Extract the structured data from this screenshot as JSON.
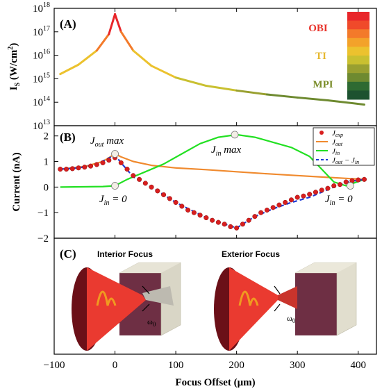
{
  "chart_data": [
    {
      "type": "line",
      "panel_label": "(A)",
      "ylabel": "I_S (W/cm^2)",
      "ylabel_main": "I",
      "ylabel_sub": "S",
      "ylabel_rest": " (W/cm",
      "ylabel_sup": "2",
      "ylabel_end": ")",
      "yscale": "log",
      "ylim_exp": [
        13,
        18
      ],
      "ytick_base": "10",
      "yticks_exp": [
        "13",
        "14",
        "15",
        "16",
        "17",
        "18"
      ],
      "xlim": [
        -100,
        430
      ],
      "regimes": [
        {
          "name": "OBI",
          "color": "#e8322a"
        },
        {
          "name": "TI",
          "color": "#e6b830"
        },
        {
          "name": "MPI",
          "color": "#7b8d2a"
        }
      ],
      "colorbar": [
        "#e8262a",
        "#f04a2a",
        "#f37a2a",
        "#f3a22a",
        "#ecc22e",
        "#c9c030",
        "#99a030",
        "#6e8a30",
        "#2e6a32",
        "#1d5230"
      ],
      "series": [
        {
          "x": [
            -90,
            -60,
            -30,
            -10,
            0,
            10,
            30,
            60,
            100,
            150,
            200,
            250,
            300,
            350,
            410
          ],
          "y_exp": [
            15.2,
            15.6,
            16.2,
            16.9,
            17.75,
            17.0,
            16.2,
            15.55,
            15.05,
            14.7,
            14.5,
            14.33,
            14.2,
            14.08,
            13.9
          ]
        }
      ]
    },
    {
      "type": "line",
      "panel_label": "(B)",
      "ylabel": "Current (nA)",
      "ylim": [
        -2,
        2.4
      ],
      "yticks": [
        -2,
        -1,
        0,
        1,
        2
      ],
      "xlim": [
        -100,
        430
      ],
      "series": [
        {
          "name": "J_exp",
          "legend_main": "J",
          "legend_sub": "exp",
          "marker": "circle",
          "color": "#d81e1e",
          "x": [
            -90,
            -80,
            -70,
            -60,
            -50,
            -40,
            -30,
            -20,
            -10,
            0,
            10,
            20,
            30,
            40,
            50,
            60,
            70,
            80,
            90,
            100,
            110,
            120,
            130,
            140,
            150,
            160,
            170,
            180,
            190,
            200,
            210,
            220,
            230,
            240,
            250,
            260,
            270,
            280,
            290,
            300,
            310,
            320,
            330,
            340,
            350,
            360,
            370,
            380,
            390,
            400,
            410
          ],
          "y": [
            0.7,
            0.7,
            0.72,
            0.75,
            0.78,
            0.82,
            0.88,
            0.95,
            1.05,
            1.15,
            0.95,
            0.7,
            0.45,
            0.3,
            0.15,
            0.0,
            -0.15,
            -0.3,
            -0.45,
            -0.6,
            -0.75,
            -0.9,
            -1.0,
            -1.1,
            -1.2,
            -1.3,
            -1.38,
            -1.45,
            -1.55,
            -1.6,
            -1.45,
            -1.3,
            -1.15,
            -1.0,
            -0.9,
            -0.8,
            -0.7,
            -0.6,
            -0.5,
            -0.4,
            -0.35,
            -0.28,
            -0.2,
            -0.12,
            -0.05,
            0.05,
            0.1,
            0.2,
            0.25,
            0.28,
            0.3
          ]
        },
        {
          "name": "J_out",
          "legend_main": "J",
          "legend_sub": "out",
          "color": "#f08a2e",
          "x": [
            -90,
            -50,
            -20,
            0,
            10,
            30,
            60,
            100,
            150,
            200,
            250,
            300,
            350,
            410
          ],
          "y": [
            0.7,
            0.8,
            1.0,
            1.3,
            1.18,
            1.0,
            0.85,
            0.75,
            0.68,
            0.6,
            0.52,
            0.45,
            0.38,
            0.3
          ]
        },
        {
          "name": "J_in",
          "legend_main": "J",
          "legend_sub": "in",
          "color": "#22e022",
          "x": [
            -90,
            -20,
            0,
            20,
            50,
            80,
            110,
            140,
            170,
            200,
            230,
            260,
            290,
            320,
            340,
            360,
            380,
            410
          ],
          "y": [
            0.0,
            0.02,
            0.05,
            0.3,
            0.6,
            0.9,
            1.3,
            1.7,
            1.95,
            2.05,
            1.95,
            1.75,
            1.55,
            1.2,
            0.7,
            0.2,
            0.05,
            0.3
          ]
        },
        {
          "name": "J_out - J_in",
          "legend_main": "J",
          "legend_sub": "out",
          "legend_mid": " − J",
          "legend_sub2": "in",
          "color": "#1f3bd6",
          "dash": true,
          "x": [
            -90,
            -60,
            -30,
            0,
            10,
            30,
            60,
            100,
            150,
            200,
            230,
            260,
            290,
            320,
            350,
            380,
            410
          ],
          "y": [
            0.7,
            0.75,
            0.9,
            1.25,
            0.95,
            0.4,
            0.0,
            -0.6,
            -1.2,
            -1.6,
            -1.15,
            -0.85,
            -0.6,
            -0.4,
            -0.1,
            0.2,
            0.3
          ]
        }
      ],
      "annotations": [
        {
          "main": "J",
          "sub": "out",
          "rest": " max",
          "color": "#f3a063"
        },
        {
          "main": "J",
          "sub": "in",
          "rest": " max",
          "color": "#8fd66a"
        },
        {
          "main": "J",
          "sub": "in",
          "rest": " = 0",
          "color": "#f3a063"
        },
        {
          "main": "J",
          "sub": "in",
          "rest": " = 0",
          "color": "#5ed6d6"
        }
      ],
      "highlight_points": [
        {
          "x": 0,
          "y": 1.3
        },
        {
          "x": 197,
          "y": 2.05
        },
        {
          "x": 0,
          "y": 0.05
        },
        {
          "x": 387,
          "y": 0.05
        }
      ]
    },
    {
      "type": "diagram",
      "panel_label": "(C)",
      "labels": [
        "Interior Focus",
        "Exterior Focus"
      ],
      "waist_main": "ω",
      "waist_sub": "0"
    }
  ],
  "x_axis": {
    "xlabel": "Focus Offset (μm)",
    "ticks": [
      -100,
      0,
      100,
      200,
      300,
      400
    ],
    "tick_labels": [
      "−100",
      "0",
      "100",
      "200",
      "300",
      "400"
    ]
  }
}
